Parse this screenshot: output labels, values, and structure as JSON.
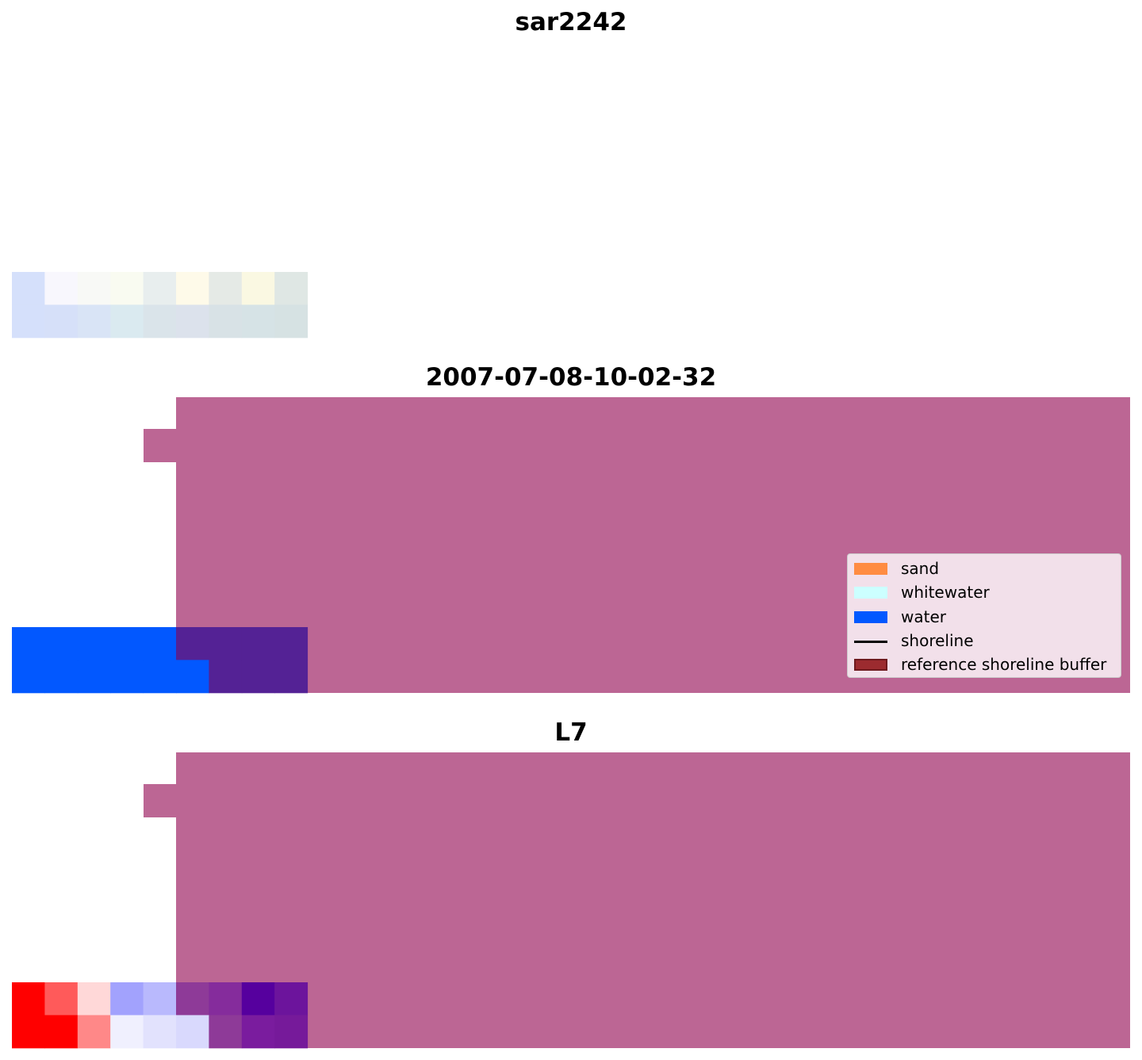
{
  "chart_data": [
    {
      "type": "heatmap",
      "title": "sar2242",
      "grid": false,
      "rows": 2,
      "cols": 9,
      "cells": [
        [
          "#d5e0fb",
          "#f8f7fd",
          "#f8f9f6",
          "#f9fbf1",
          "#e8eeee",
          "#fefae9",
          "#e5eae6",
          "#faf8e2",
          "#dfe7e4"
        ],
        [
          "#d5e0fb",
          "#d6e0f9",
          "#d9e4f6",
          "#daeaf0",
          "#dae4ea",
          "#dce2ec",
          "#d8e2e6",
          "#d6e3e6",
          "#d6e2e3"
        ]
      ]
    },
    {
      "type": "heatmap",
      "title": "2007-07-08-10-02-32",
      "grid": false,
      "overlay_color": "#bc6694",
      "classes": [
        {
          "label": "water",
          "color": "#0258ff",
          "mask": [
            [
              1,
              1,
              1,
              1,
              1,
              0,
              0,
              0,
              0
            ],
            [
              1,
              1,
              1,
              1,
              1,
              1,
              0,
              0,
              0
            ]
          ]
        },
        {
          "label": "reference shoreline buffer (overlap with water)",
          "color": "#542295"
        }
      ],
      "legend": {
        "position": "lower-right",
        "entries": [
          {
            "label": "sand",
            "color": "#ff8c42",
            "kind": "patch"
          },
          {
            "label": "whitewater",
            "color": "#ccffff",
            "kind": "patch"
          },
          {
            "label": "water",
            "color": "#0258ff",
            "kind": "patch"
          },
          {
            "label": "shoreline",
            "color": "#000000",
            "kind": "line"
          },
          {
            "label": "reference shoreline buffer",
            "color": "#9c2b2f",
            "kind": "patch"
          }
        ]
      }
    },
    {
      "type": "heatmap",
      "title": "L7",
      "grid": false,
      "overlay_color": "#bc6694",
      "rows": 2,
      "cols": 9,
      "cells": [
        [
          "#ff0000",
          "#ff5a5a",
          "#ffd8d8",
          "#a2a2fd",
          "#b9b9fd",
          "#8e3a98",
          "#852c9c",
          "#56009e",
          "#6c149c"
        ],
        [
          "#ff0000",
          "#ff0000",
          "#ff8888",
          "#f0f0fe",
          "#e2e2fd",
          "#d9d9fd",
          "#8e3a98",
          "#7a1c9e",
          "#761a9a"
        ]
      ]
    }
  ]
}
